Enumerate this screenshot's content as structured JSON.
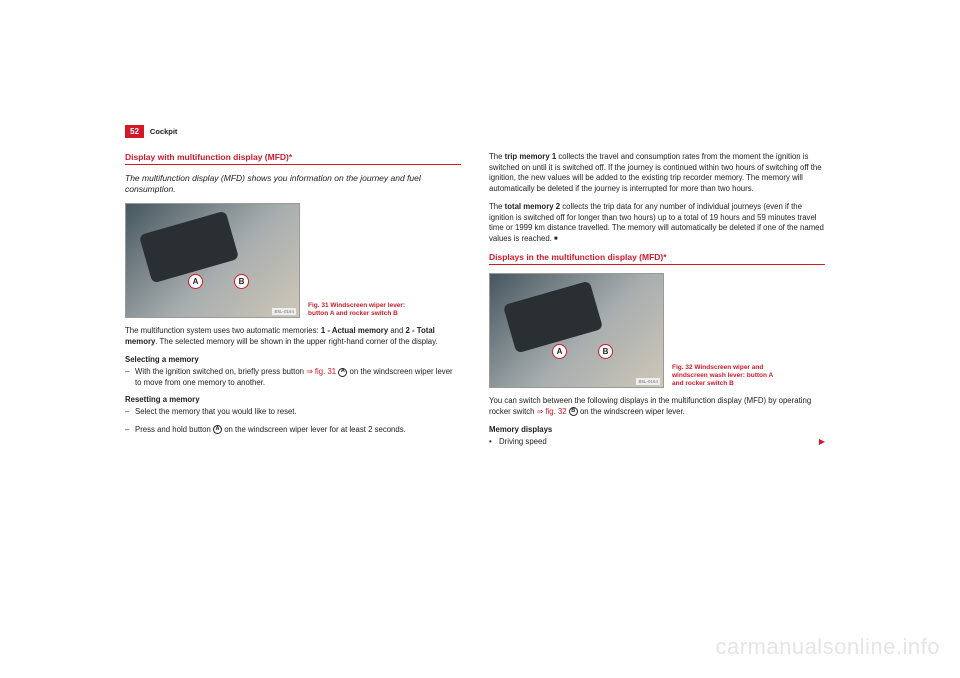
{
  "page_number": "52",
  "chapter": "Cockpit",
  "left": {
    "title": "Display with multifunction display (MFD)*",
    "intro": "The multifunction display (MFD) shows you information on the journey and fuel consumption.",
    "badge_a": "A",
    "badge_b": "B",
    "fig_id": "B5L-0164",
    "caption": "Fig. 31  Windscreen wiper lever: button A and rocker switch B",
    "para1_a": "The multifunction system uses two automatic memories: ",
    "para1_b": "1 - Actual memory",
    "para1_c": " and ",
    "para1_d": "2 - Total memory",
    "para1_e": ". The selected memory will be shown in the upper right-hand corner of the display.",
    "subhead1": "Selecting a memory",
    "step1_a": "With the ignition switched on, briefly press button ",
    "step1_ref": "⇒ fig. 31",
    "step1_circle": "A",
    "step1_b": " on the windscreen wiper lever to move from one memory to another.",
    "subhead2": "Resetting a memory",
    "step2": "Select the memory that you would like to reset.",
    "step3_a": "Press and hold button ",
    "step3_circle": "A",
    "step3_b": " on the windscreen wiper lever for at least 2 seconds."
  },
  "right": {
    "para1_a": "The ",
    "para1_b": "trip memory 1",
    "para1_c": " collects the travel and consumption rates from the moment the ignition is switched on until it is switched off. If the journey is continued within two hours of switching off the ignition, the new values will be added to the existing trip recorder memory. The memory will automatically be deleted if the journey is interrupted for more than two hours.",
    "para2_a": "The ",
    "para2_b": "total memory 2",
    "para2_c": " collects the trip data for any number of individual journeys (even if the ignition is switched off for longer than two hours) up to a total of 19 hours and 59 minutes travel time or 1999 km distance travelled. The memory will automatically be deleted if one of the named values is reached.",
    "title": "Displays in the multifunction display (MFD)*",
    "badge_a": "A",
    "badge_b": "B",
    "fig_id": "B5L-0164",
    "caption": "Fig. 32  Windscreen wiper and windscreen wash lever: button A and rocker switch B",
    "para3_a": "You can switch between the following displays in the multifunction display (MFD) by operating rocker switch ",
    "para3_ref": "⇒ fig. 32",
    "para3_circle": "B",
    "para3_b": " on the windscreen wiper lever.",
    "subhead": "Memory displays",
    "bullet1": "Driving speed",
    "arrow": "▶"
  },
  "watermark": "carmanualsonline.info"
}
